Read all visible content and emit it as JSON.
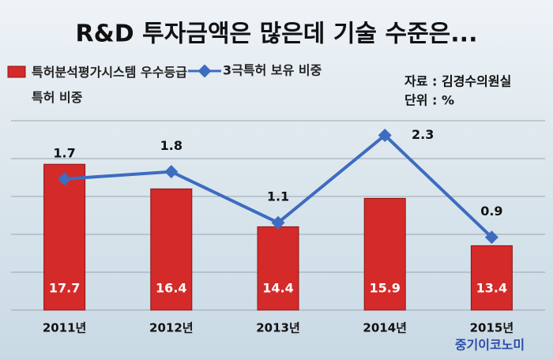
{
  "chart_data": {
    "type": "bar-line",
    "title": "R&D 투자금액은 많은데 기술 수준은...",
    "source": "자료 : 김경수의원실",
    "unit": "단위 : %",
    "watermark": "중기이코노미",
    "categories": [
      "2011년",
      "2012년",
      "2013년",
      "2014년",
      "2015년"
    ],
    "series": [
      {
        "name": "특허분석평가시스템 우수등급 특허 비중",
        "type": "bar",
        "color": "#d42a2a",
        "values": [
          17.7,
          16.4,
          14.4,
          15.9,
          13.4
        ]
      },
      {
        "name": "3극특허 보유 비중",
        "type": "line",
        "axis": "y2",
        "color": "#3d6cc0",
        "values": [
          1.7,
          1.8,
          1.1,
          2.3,
          0.9
        ]
      }
    ],
    "ylim": [
      10,
      20
    ],
    "y2lim": [
      -0.1,
      2.5
    ]
  }
}
